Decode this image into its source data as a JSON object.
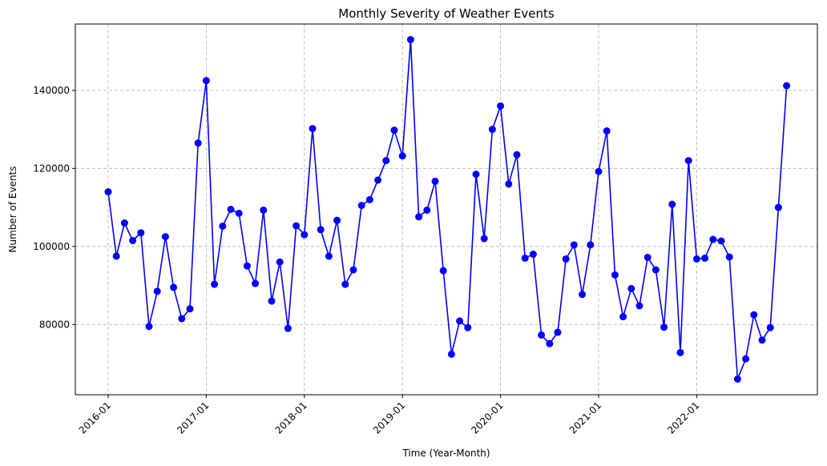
{
  "chart_data": {
    "type": "line",
    "title": "Monthly Severity of Weather Events",
    "xlabel": "Time (Year-Month)",
    "ylabel": "Number of Events",
    "grid": true,
    "xticks": [
      "2016-01",
      "2017-01",
      "2018-01",
      "2019-01",
      "2020-01",
      "2021-01",
      "2022-01"
    ],
    "yticks": [
      "80000",
      "100000",
      "120000",
      "140000"
    ],
    "ylim": [
      62000,
      157000
    ],
    "series": [
      {
        "color": "#0000ff",
        "x": [
          "2016-01",
          "2016-02",
          "2016-03",
          "2016-04",
          "2016-05",
          "2016-06",
          "2016-07",
          "2016-08",
          "2016-09",
          "2016-10",
          "2016-11",
          "2016-12",
          "2017-01",
          "2017-02",
          "2017-03",
          "2017-04",
          "2017-05",
          "2017-06",
          "2017-07",
          "2017-08",
          "2017-09",
          "2017-10",
          "2017-11",
          "2017-12",
          "2018-01",
          "2018-02",
          "2018-03",
          "2018-04",
          "2018-05",
          "2018-06",
          "2018-07",
          "2018-08",
          "2018-09",
          "2018-10",
          "2018-11",
          "2018-12",
          "2019-01",
          "2019-02",
          "2019-03",
          "2019-04",
          "2019-05",
          "2019-06",
          "2019-07",
          "2019-08",
          "2019-09",
          "2019-10",
          "2019-11",
          "2019-12",
          "2020-01",
          "2020-02",
          "2020-03",
          "2020-04",
          "2020-05",
          "2020-06",
          "2020-07",
          "2020-08",
          "2020-09",
          "2020-10",
          "2020-11",
          "2020-12",
          "2021-01",
          "2021-02",
          "2021-03",
          "2021-04",
          "2021-05",
          "2021-06",
          "2021-07",
          "2021-08",
          "2021-09",
          "2021-10",
          "2021-11",
          "2021-12",
          "2022-01",
          "2022-02",
          "2022-03",
          "2022-04",
          "2022-05",
          "2022-06",
          "2022-07",
          "2022-08",
          "2022-09",
          "2022-10",
          "2022-11",
          "2022-12"
        ],
        "values": [
          114000,
          97500,
          106000,
          101500,
          103500,
          79500,
          88500,
          102500,
          89500,
          81500,
          84000,
          126500,
          142500,
          90300,
          105200,
          109500,
          108500,
          95000,
          90500,
          109300,
          86000,
          96000,
          79000,
          105300,
          103000,
          130200,
          104300,
          97500,
          106700,
          90300,
          94000,
          110500,
          112000,
          117000,
          122000,
          129800,
          123200,
          153000,
          107600,
          109300,
          116700,
          93800,
          72400,
          80900,
          79200,
          118500,
          102000,
          130000,
          136000,
          116000,
          123500,
          97000,
          98000,
          77300,
          75100,
          78000,
          96800,
          100400,
          87700,
          100400,
          119200,
          129600,
          92700,
          82000,
          89200,
          84800,
          97200,
          94000,
          79300,
          110800,
          72800,
          122000,
          96800,
          97000,
          101800,
          101400,
          97300,
          66000,
          71200,
          82500,
          76000,
          79200,
          110000,
          141200
        ]
      }
    ]
  }
}
